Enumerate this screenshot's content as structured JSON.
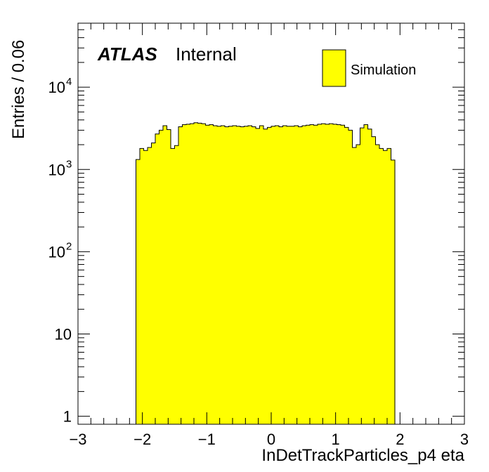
{
  "chart_data": {
    "type": "bar",
    "xlabel": "InDetTrackParticles_p4 eta",
    "ylabel": "Entries / 0.06",
    "xlim": [
      -3,
      3
    ],
    "ylim": [
      0.8,
      60000
    ],
    "log_y": true,
    "grid": false,
    "legend_position": "top-right",
    "label_main": "ATLAS",
    "label_sub": "Internal",
    "bin_width": 0.06,
    "x_start": -2.1,
    "x_ticks": [
      "−3",
      "−2",
      "−1",
      "0",
      "1",
      "2",
      "3"
    ],
    "x_tick_values": [
      -3,
      -2,
      -1,
      0,
      1,
      2,
      3
    ],
    "y_ticks": [
      {
        "value": 1,
        "base": "1",
        "exp": ""
      },
      {
        "value": 10,
        "base": "10",
        "exp": ""
      },
      {
        "value": 100,
        "base": "10",
        "exp": "2"
      },
      {
        "value": 1000,
        "base": "10",
        "exp": "3"
      },
      {
        "value": 10000,
        "base": "10",
        "exp": "4"
      }
    ],
    "series": [
      {
        "name": "Simulation",
        "color": "#ffff00",
        "edge_color": "#000000",
        "values": [
          1320,
          1800,
          1700,
          1850,
          2100,
          2700,
          3000,
          3400,
          3050,
          1800,
          1950,
          3300,
          3500,
          3550,
          3600,
          3700,
          3650,
          3600,
          3450,
          3500,
          3400,
          3350,
          3400,
          3300,
          3350,
          3400,
          3350,
          3300,
          3350,
          3400,
          3300,
          3150,
          3400,
          3100,
          3250,
          3350,
          3400,
          3300,
          3400,
          3350,
          3350,
          3400,
          3300,
          3400,
          3450,
          3500,
          3450,
          3550,
          3600,
          3550,
          3600,
          3550,
          3500,
          3450,
          3250,
          3000,
          1850,
          2000,
          3200,
          3500,
          3100,
          2500,
          2000,
          1800,
          1700,
          1800,
          1300
        ]
      }
    ]
  }
}
